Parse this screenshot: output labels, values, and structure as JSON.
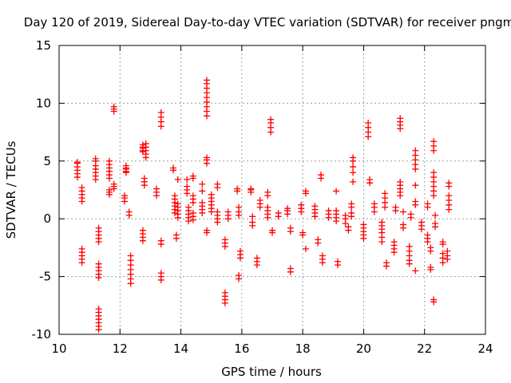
{
  "chart_data": {
    "type": "scatter",
    "title": "Day 120 of 2019, Sidereal Day-to-day VTEC variation (SDTVAR) for receiver pngm",
    "xlabel": "GPS time / hours",
    "ylabel": "SDTVAR / TECUs",
    "xlim": [
      10,
      24
    ],
    "ylim": [
      -10,
      15
    ],
    "xticks": [
      10,
      12,
      14,
      16,
      18,
      20,
      22,
      24
    ],
    "yticks": [
      -10,
      -5,
      0,
      5,
      10,
      15
    ],
    "xtick_labels": [
      "10",
      "12",
      "14",
      "16",
      "18",
      "20",
      "22",
      "24"
    ],
    "ytick_labels": [
      "-10",
      "-5",
      "0",
      "5",
      "10",
      "15"
    ],
    "grid": true,
    "marker": "+",
    "color": "#ff0000",
    "clusters": [
      {
        "x": 10.6,
        "y": [
          3.6,
          3.9,
          4.2,
          4.5,
          4.8,
          4.9
        ]
      },
      {
        "x": 10.75,
        "y": [
          2.7,
          2.4,
          2.1,
          1.8,
          1.5
        ]
      },
      {
        "x": 10.75,
        "y": [
          -2.6,
          -2.9,
          -3.2,
          -3.5,
          -3.8
        ]
      },
      {
        "x": 11.2,
        "y": [
          3.4,
          3.7,
          4.0,
          4.3,
          4.6,
          5.0,
          5.2
        ]
      },
      {
        "x": 11.3,
        "y": [
          -0.8,
          -1.1,
          -1.4,
          -1.7,
          -2.0
        ]
      },
      {
        "x": 11.3,
        "y": [
          -3.9,
          -4.2,
          -4.5,
          -4.8,
          -5.1
        ]
      },
      {
        "x": 11.3,
        "y": [
          -7.8,
          -8.1,
          -8.4,
          -8.7,
          -9.0,
          -9.3,
          -9.6
        ]
      },
      {
        "x": 11.65,
        "y": [
          3.5,
          3.8,
          4.1,
          4.4,
          4.7,
          5.0
        ]
      },
      {
        "x": 11.65,
        "y": [
          2.1,
          2.3,
          2.5
        ]
      },
      {
        "x": 11.8,
        "y": [
          9.7,
          9.5,
          9.3
        ]
      },
      {
        "x": 11.8,
        "y": [
          2.6,
          2.8,
          3.0
        ]
      },
      {
        "x": 12.2,
        "y": [
          4.0,
          4.3,
          4.6,
          4.4,
          4.1
        ]
      },
      {
        "x": 12.15,
        "y": [
          1.5,
          1.8,
          2.0
        ]
      },
      {
        "x": 12.3,
        "y": [
          0.3,
          0.6
        ]
      },
      {
        "x": 12.35,
        "y": [
          -3.2,
          -3.6,
          -4.0,
          -4.4,
          -4.8,
          -5.2,
          -5.6
        ]
      },
      {
        "x": 12.75,
        "y": [
          5.8,
          6.1,
          6.4,
          6.2,
          5.9
        ]
      },
      {
        "x": 12.85,
        "y": [
          5.3,
          5.6,
          5.9,
          6.2,
          6.5
        ]
      },
      {
        "x": 12.8,
        "y": [
          2.9,
          3.2,
          3.5,
          3.2
        ]
      },
      {
        "x": 12.75,
        "y": [
          -1.0,
          -1.3,
          -1.6,
          -1.9
        ]
      },
      {
        "x": 13.2,
        "y": [
          2.0,
          2.3,
          2.6
        ]
      },
      {
        "x": 13.35,
        "y": [
          8.0,
          8.4,
          8.8,
          9.2
        ]
      },
      {
        "x": 13.35,
        "y": [
          -1.9,
          -2.2
        ]
      },
      {
        "x": 13.35,
        "y": [
          -4.7,
          -5.0,
          -5.3
        ]
      },
      {
        "x": 13.75,
        "y": [
          4.4,
          4.2
        ]
      },
      {
        "x": 13.8,
        "y": [
          0.5,
          0.8,
          1.1,
          1.4,
          1.7,
          2.0
        ]
      },
      {
        "x": 13.9,
        "y": [
          0.1,
          0.4,
          0.7,
          1.0,
          1.3,
          3.4
        ]
      },
      {
        "x": 13.85,
        "y": [
          -1.4,
          -1.7
        ]
      },
      {
        "x": 14.2,
        "y": [
          2.2,
          2.5,
          2.8,
          3.4
        ]
      },
      {
        "x": 14.25,
        "y": [
          -0.2,
          0.1,
          0.4,
          0.7,
          1.0
        ]
      },
      {
        "x": 14.4,
        "y": [
          3.5,
          3.7,
          1.4,
          1.7,
          2.0
        ]
      },
      {
        "x": 14.4,
        "y": [
          -0.1,
          0.2,
          0.5
        ]
      },
      {
        "x": 14.7,
        "y": [
          0.5,
          0.8,
          1.1,
          1.4,
          2.4,
          3.0
        ]
      },
      {
        "x": 14.85,
        "y": [
          4.8,
          5.1,
          5.3
        ]
      },
      {
        "x": 14.85,
        "y": [
          8.9,
          9.3,
          9.7,
          10.1,
          10.5,
          10.9,
          11.3,
          11.7,
          12.0
        ]
      },
      {
        "x": 14.85,
        "y": [
          -1.0,
          -1.2
        ]
      },
      {
        "x": 15.0,
        "y": [
          0.6,
          0.9,
          1.2,
          1.5,
          1.8,
          2.1
        ]
      },
      {
        "x": 15.2,
        "y": [
          -0.3,
          0.0,
          0.3,
          0.6,
          2.7,
          3.0
        ]
      },
      {
        "x": 15.45,
        "y": [
          -1.8,
          -2.1,
          -2.4
        ]
      },
      {
        "x": 15.45,
        "y": [
          -6.4,
          -6.7,
          -7.0,
          -7.3
        ]
      },
      {
        "x": 15.55,
        "y": [
          0.0,
          0.3,
          0.6
        ]
      },
      {
        "x": 15.85,
        "y": [
          2.4,
          2.6
        ]
      },
      {
        "x": 15.9,
        "y": [
          0.3,
          0.6,
          1.0
        ]
      },
      {
        "x": 15.95,
        "y": [
          -2.8,
          -3.1,
          -3.4
        ]
      },
      {
        "x": 15.9,
        "y": [
          -4.9,
          -5.2
        ]
      },
      {
        "x": 16.3,
        "y": [
          2.6,
          2.3,
          2.5
        ]
      },
      {
        "x": 16.35,
        "y": [
          -0.3,
          -0.6,
          0.2
        ]
      },
      {
        "x": 16.5,
        "y": [
          -3.4,
          -3.7,
          -4.0
        ]
      },
      {
        "x": 16.6,
        "y": [
          1.0,
          1.3,
          1.6
        ]
      },
      {
        "x": 16.85,
        "y": [
          0.1,
          0.4,
          0.7,
          1.0,
          2.0,
          2.3
        ]
      },
      {
        "x": 16.95,
        "y": [
          7.5,
          7.9,
          8.3,
          8.6
        ]
      },
      {
        "x": 17.0,
        "y": [
          -1.0,
          -1.2
        ]
      },
      {
        "x": 17.2,
        "y": [
          0.2,
          0.5
        ]
      },
      {
        "x": 17.5,
        "y": [
          0.4,
          0.7,
          0.9
        ]
      },
      {
        "x": 17.6,
        "y": [
          -4.3,
          -4.6
        ]
      },
      {
        "x": 17.6,
        "y": [
          -0.8,
          -1.1
        ]
      },
      {
        "x": 17.95,
        "y": [
          0.6,
          0.9,
          1.2
        ]
      },
      {
        "x": 18.0,
        "y": [
          -1.2,
          -1.4
        ]
      },
      {
        "x": 18.1,
        "y": [
          2.2,
          2.4
        ]
      },
      {
        "x": 18.1,
        "y": [
          -2.6
        ]
      },
      {
        "x": 18.4,
        "y": [
          0.2,
          0.5,
          0.8,
          1.1
        ]
      },
      {
        "x": 18.5,
        "y": [
          -1.8,
          -2.1
        ]
      },
      {
        "x": 18.6,
        "y": [
          3.5,
          3.8
        ]
      },
      {
        "x": 18.65,
        "y": [
          -3.2,
          -3.5,
          -3.8
        ]
      },
      {
        "x": 18.85,
        "y": [
          0.1,
          0.4,
          0.7
        ]
      },
      {
        "x": 19.1,
        "y": [
          -0.2,
          0.1,
          0.4,
          0.7,
          2.4
        ]
      },
      {
        "x": 19.15,
        "y": [
          -3.7,
          -4.0
        ]
      },
      {
        "x": 19.4,
        "y": [
          -0.4,
          0.0,
          0.3
        ]
      },
      {
        "x": 19.5,
        "y": [
          -0.7,
          -1.0
        ]
      },
      {
        "x": 19.6,
        "y": [
          0.2,
          0.5,
          1.0,
          1.3
        ]
      },
      {
        "x": 19.65,
        "y": [
          3.2,
          4.0,
          4.5,
          5.0,
          5.3
        ]
      },
      {
        "x": 20.0,
        "y": [
          -0.5,
          -0.8,
          -1.1,
          -1.4,
          -1.7
        ]
      },
      {
        "x": 20.15,
        "y": [
          7.1,
          7.5,
          7.9,
          8.3
        ]
      },
      {
        "x": 20.2,
        "y": [
          3.1,
          3.4
        ]
      },
      {
        "x": 20.35,
        "y": [
          0.6,
          1.0,
          1.3
        ]
      },
      {
        "x": 20.6,
        "y": [
          -0.3,
          -0.6,
          -0.9,
          -1.2,
          -1.6,
          -2.0
        ]
      },
      {
        "x": 20.7,
        "y": [
          1.0,
          1.4,
          1.8,
          2.2
        ]
      },
      {
        "x": 20.75,
        "y": [
          -3.8,
          -4.1
        ]
      },
      {
        "x": 21.0,
        "y": [
          -2.0,
          -2.3,
          -2.6,
          -2.9
        ]
      },
      {
        "x": 21.05,
        "y": [
          0.7,
          1.0
        ]
      },
      {
        "x": 21.2,
        "y": [
          2.0,
          2.3,
          2.6,
          2.9,
          3.2
        ]
      },
      {
        "x": 21.2,
        "y": [
          7.8,
          8.1,
          8.4,
          8.7
        ]
      },
      {
        "x": 21.3,
        "y": [
          -0.5,
          -0.8,
          0.6
        ]
      },
      {
        "x": 21.5,
        "y": [
          -2.4,
          -2.8,
          -3.2,
          -3.6,
          -3.9
        ]
      },
      {
        "x": 21.55,
        "y": [
          0.1,
          0.4
        ]
      },
      {
        "x": 21.7,
        "y": [
          4.3,
          4.7,
          5.1,
          5.5,
          5.9
        ]
      },
      {
        "x": 21.7,
        "y": [
          2.9,
          1.2,
          1.5
        ]
      },
      {
        "x": 21.7,
        "y": [
          -4.5
        ]
      },
      {
        "x": 21.9,
        "y": [
          -0.3,
          -0.6,
          -0.9
        ]
      },
      {
        "x": 22.1,
        "y": [
          1.0,
          1.3,
          -1.4,
          -1.7,
          -2.0
        ]
      },
      {
        "x": 22.2,
        "y": [
          -2.5,
          -2.8,
          -4.2,
          -4.4
        ]
      },
      {
        "x": 22.3,
        "y": [
          2.0,
          2.4,
          2.8,
          3.2,
          3.6,
          4.0
        ]
      },
      {
        "x": 22.3,
        "y": [
          5.9,
          6.3,
          6.7
        ]
      },
      {
        "x": 22.3,
        "y": [
          -7.0,
          -7.2
        ]
      },
      {
        "x": 22.35,
        "y": [
          -0.4,
          -0.7,
          0.3
        ]
      },
      {
        "x": 22.6,
        "y": [
          -3.0,
          -3.4,
          -3.8,
          -2.0,
          -2.2
        ]
      },
      {
        "x": 22.75,
        "y": [
          -2.8,
          -3.2,
          -3.5
        ]
      },
      {
        "x": 22.8,
        "y": [
          0.8,
          1.2,
          1.6,
          2.0,
          2.8,
          3.1
        ]
      }
    ]
  }
}
